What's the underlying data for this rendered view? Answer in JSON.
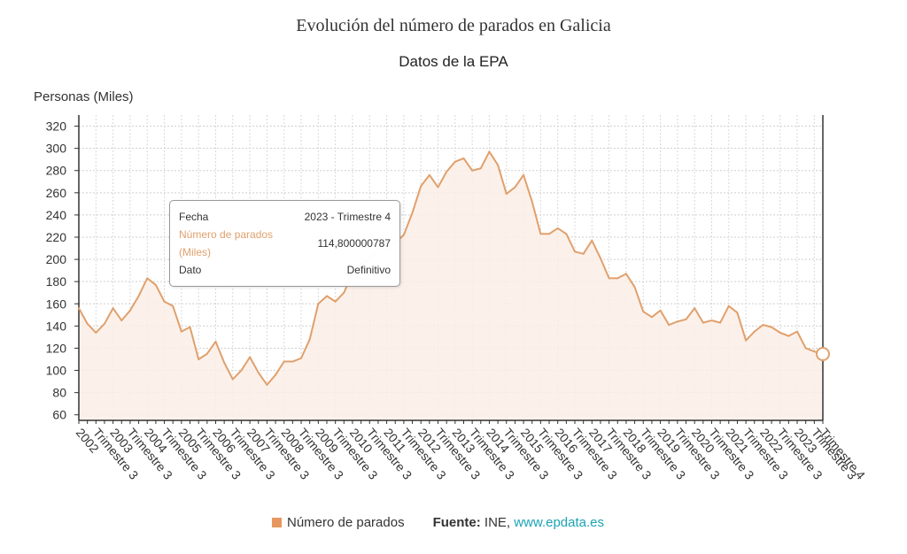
{
  "chart_data": {
    "type": "area",
    "title": "Evolución del número de parados en Galicia",
    "subtitle": "Datos de la EPA",
    "ylabel": "Personas (Miles)",
    "ylim": [
      55,
      330
    ],
    "yticks": [
      60,
      80,
      100,
      120,
      140,
      160,
      180,
      200,
      220,
      240,
      260,
      280,
      300,
      320
    ],
    "grid": true,
    "legend_position": "bottom",
    "xtick_labels": [
      "2002",
      "Trimestre 3",
      "2003",
      "Trimestre 3",
      "2004",
      "Trimestre 3",
      "2005",
      "Trimestre 3",
      "2006",
      "Trimestre 3",
      "2007",
      "Trimestre 3",
      "2008",
      "Trimestre 3",
      "2009",
      "Trimestre 3",
      "2010",
      "Trimestre 3",
      "2011",
      "Trimestre 3",
      "2012",
      "Trimestre 3",
      "2013",
      "Trimestre 3",
      "2014",
      "Trimestre 3",
      "2015",
      "Trimestre 3",
      "2016",
      "Trimestre 3",
      "2017",
      "Trimestre 3",
      "2018",
      "Trimestre 3",
      "2019",
      "Trimestre 3",
      "2020",
      "Trimestre 3",
      "2021",
      "Trimestre 3",
      "2022",
      "Trimestre 3",
      "2023",
      "Trimestre 3",
      "Trimestre 4"
    ],
    "series": [
      {
        "name": "Número de parados",
        "color": "#e0a06d",
        "values": [
          156,
          142,
          134,
          142,
          156,
          145,
          154,
          167,
          183,
          177,
          162,
          158,
          135,
          139,
          110,
          115,
          126,
          107,
          92,
          100,
          112,
          98,
          87,
          96,
          108,
          108,
          111,
          128,
          160,
          167,
          162,
          170,
          188,
          196,
          200,
          210,
          210,
          215,
          222,
          242,
          266,
          276,
          265,
          279,
          288,
          291,
          280,
          282,
          297,
          285,
          259,
          265,
          276,
          252,
          223,
          223,
          228,
          223,
          207,
          205,
          217,
          201,
          183,
          183,
          187,
          175,
          153,
          148,
          154,
          141,
          144,
          146,
          156,
          143,
          145,
          143,
          158,
          152,
          127,
          135,
          141,
          139,
          134,
          131,
          135,
          120,
          117,
          114.8
        ]
      }
    ]
  },
  "tooltip": {
    "fecha_label": "Fecha",
    "fecha_value": "2023 - Trimestre 4",
    "serie_label_1": "Número de parados",
    "serie_label_2": "(Miles)",
    "serie_value": "114,800000787",
    "dato_label": "Dato",
    "dato_value": "Definitivo"
  },
  "legend": {
    "label": "Número de parados",
    "source_label": "Fuente:",
    "source_text": "INE,",
    "source_link": "www.epdata.es"
  }
}
